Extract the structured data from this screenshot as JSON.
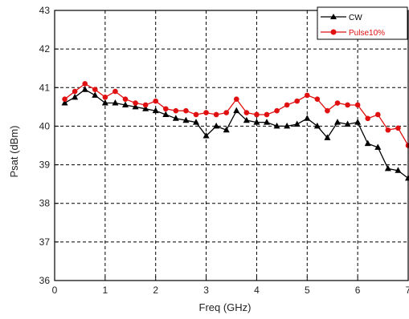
{
  "chart_data": {
    "type": "line",
    "xlabel": "Freq (GHz)",
    "ylabel": "Psat (dBm)",
    "xlim": [
      0,
      7
    ],
    "ylim": [
      36,
      43
    ],
    "xticks": [
      "0",
      "1",
      "2",
      "3",
      "4",
      "5",
      "6",
      "7"
    ],
    "yticks": [
      "36",
      "37",
      "38",
      "39",
      "40",
      "41",
      "42",
      "43"
    ],
    "grid": true,
    "legend_position": "top-right",
    "series": [
      {
        "name": "CW",
        "color": "#000000",
        "marker": "triangle",
        "x": [
          0.2,
          0.4,
          0.6,
          0.8,
          1.0,
          1.2,
          1.4,
          1.6,
          1.8,
          2.0,
          2.2,
          2.4,
          2.6,
          2.8,
          3.0,
          3.2,
          3.4,
          3.6,
          3.8,
          4.0,
          4.2,
          4.4,
          4.6,
          4.8,
          5.0,
          5.2,
          5.4,
          5.6,
          5.8,
          6.0,
          6.2,
          6.4,
          6.6,
          6.8,
          7.0
        ],
        "y": [
          40.6,
          40.75,
          40.95,
          40.8,
          40.6,
          40.6,
          40.55,
          40.5,
          40.45,
          40.4,
          40.3,
          40.2,
          40.15,
          40.1,
          39.75,
          40.0,
          39.9,
          40.4,
          40.15,
          40.1,
          40.1,
          40.0,
          40.0,
          40.05,
          40.2,
          40.0,
          39.7,
          40.1,
          40.05,
          40.1,
          39.55,
          39.45,
          38.9,
          38.85,
          38.65
        ]
      },
      {
        "name": "Pulse10%",
        "color": "#e01010",
        "marker": "circle",
        "x": [
          0.2,
          0.4,
          0.6,
          0.8,
          1.0,
          1.2,
          1.4,
          1.6,
          1.8,
          2.0,
          2.2,
          2.4,
          2.6,
          2.8,
          3.0,
          3.2,
          3.4,
          3.6,
          3.8,
          4.0,
          4.2,
          4.4,
          4.6,
          4.8,
          5.0,
          5.2,
          5.4,
          5.6,
          5.8,
          6.0,
          6.2,
          6.4,
          6.6,
          6.8,
          7.0
        ],
        "y": [
          40.7,
          40.9,
          41.1,
          40.95,
          40.75,
          40.9,
          40.7,
          40.6,
          40.55,
          40.65,
          40.45,
          40.4,
          40.4,
          40.3,
          40.35,
          40.3,
          40.35,
          40.7,
          40.35,
          40.3,
          40.3,
          40.4,
          40.55,
          40.65,
          40.8,
          40.7,
          40.4,
          40.6,
          40.55,
          40.55,
          40.2,
          40.3,
          39.9,
          39.95,
          39.5
        ]
      }
    ]
  }
}
